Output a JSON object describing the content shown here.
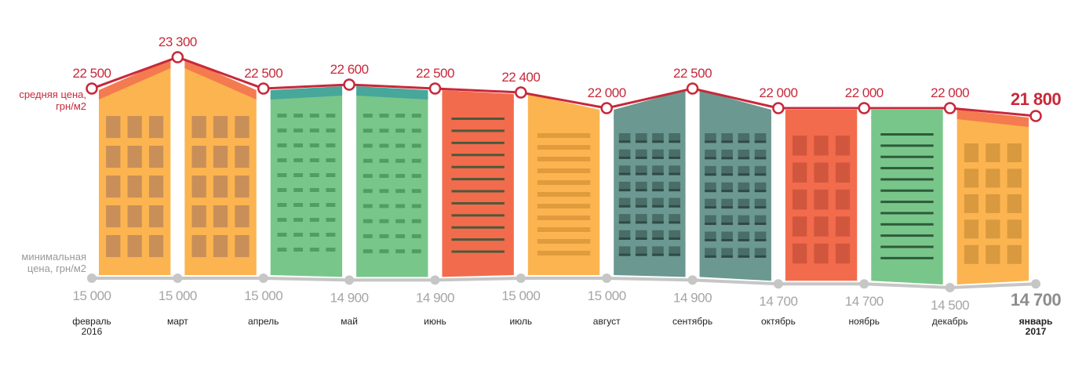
{
  "labels": {
    "avg_line1": "средняя цена,",
    "avg_line2": "грн/м2",
    "min_line1": "минимальная",
    "min_line2": "цена, грн/м2"
  },
  "colors": {
    "avg_line": "#c8283a",
    "min_line": "#c6c6c6",
    "avg_text": "#c8283a",
    "min_text": "#a5a5a5"
  },
  "chart_data": {
    "type": "line",
    "categories": [
      [
        "февраль",
        "2016"
      ],
      [
        "март"
      ],
      [
        "апрель"
      ],
      [
        "май"
      ],
      [
        "июнь"
      ],
      [
        "июль"
      ],
      [
        "август"
      ],
      [
        "сентябрь"
      ],
      [
        "октябрь"
      ],
      [
        "ноябрь"
      ],
      [
        "декабрь"
      ],
      [
        "январь",
        "2017"
      ]
    ],
    "series": [
      {
        "name": "средняя цена, грн/м2",
        "values": [
          22500,
          23300,
          22500,
          22600,
          22500,
          22400,
          22000,
          22500,
          22000,
          22000,
          22000,
          21800
        ],
        "value_labels": [
          "22 500",
          "23 300",
          "22 500",
          "22 600",
          "22 500",
          "22 400",
          "22 000",
          "22 500",
          "22 000",
          "22 000",
          "22 000",
          "21 800"
        ]
      },
      {
        "name": "минимальная цена, грн/м2",
        "values": [
          15000,
          15000,
          15000,
          14900,
          14900,
          15000,
          15000,
          14900,
          14700,
          14700,
          14500,
          14700
        ],
        "value_labels": [
          "15 000",
          "15 000",
          "15 000",
          "14 900",
          "14 900",
          "15 000",
          "15 000",
          "14 900",
          "14 700",
          "14 700",
          "14 500",
          "14 700"
        ]
      }
    ],
    "buildings": [
      {
        "body": "#fbb450",
        "roof": "#f47a50",
        "window": "#c98f58",
        "style": "grid3"
      },
      {
        "body": "#fbb450",
        "roof": "#f47a50",
        "window": "#c98f58",
        "style": "grid3"
      },
      {
        "body": "#79c68a",
        "roof": "#47a79a",
        "window": "#4f9e62",
        "style": "dashes"
      },
      {
        "body": "#79c68a",
        "roof": "#47a79a",
        "window": "#4f9e62",
        "style": "dashes"
      },
      {
        "body": "#f26b4d",
        "roof": "#f26b4d",
        "window": "#4a5a3a",
        "style": "stripes"
      },
      {
        "body": "#fbb450",
        "roof": "#fbb450",
        "window": "#e09b3d",
        "style": "bars"
      },
      {
        "body": "#6b9890",
        "roof": "#6b9890",
        "window": "#3e5f5a",
        "style": "tower"
      },
      {
        "body": "#6b9890",
        "roof": "#6b9890",
        "window": "#3e5f5a",
        "style": "tower"
      },
      {
        "body": "#f26b4d",
        "roof": "#f26b4d",
        "window": "#d1563e",
        "style": "grid3"
      },
      {
        "body": "#79c68a",
        "roof": "#79c68a",
        "window": "#2e5a3a",
        "style": "stripes"
      },
      {
        "body": "#fbb450",
        "roof": "#f47a50",
        "window": "#d9993e",
        "style": "grid3"
      }
    ]
  }
}
